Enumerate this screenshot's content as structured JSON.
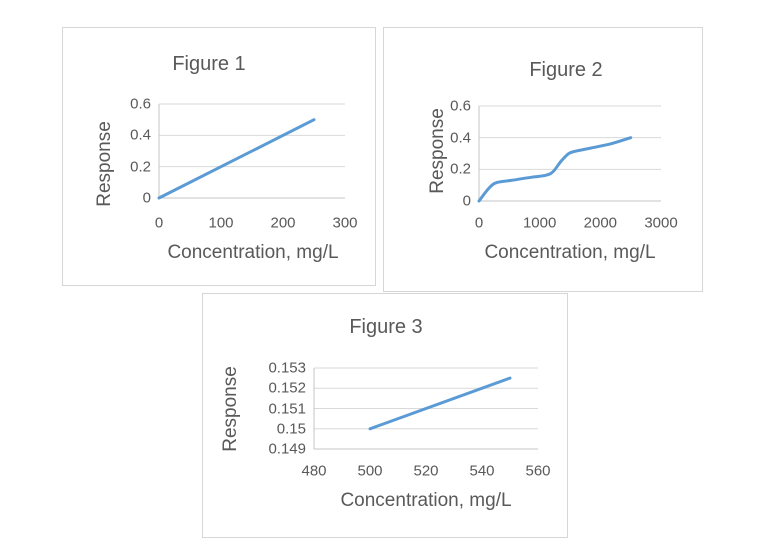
{
  "styles": {
    "line_color": "#5B9BD5",
    "text_color": "#595959",
    "gridline_color": "#D9D9D9",
    "axis_color": "#C6C6C6",
    "panel_border_color": "#D6D6D6",
    "background": "#FFFFFF"
  },
  "chart_data": [
    {
      "type": "line",
      "title": "Figure 1",
      "xlabel": "Concentration, mg/L",
      "ylabel": "Response",
      "x": [
        0,
        250
      ],
      "y": [
        0,
        0.5
      ],
      "xlim": [
        0,
        300
      ],
      "ylim": [
        0,
        0.6
      ],
      "x_ticks": [
        0,
        100,
        200,
        300
      ],
      "x_tick_labels": [
        "0",
        "100",
        "200",
        "300"
      ],
      "y_ticks": [
        0,
        0.2,
        0.4,
        0.6
      ],
      "y_tick_labels": [
        "0",
        "0.2",
        "0.4",
        "0.6"
      ],
      "grid": "horizontal",
      "legend": "none",
      "smooth": false,
      "line_color": "#5B9BD5"
    },
    {
      "type": "line",
      "title": "Figure 2",
      "xlabel": "Concentration, mg/L",
      "ylabel": "Response",
      "x": [
        0,
        150,
        280,
        530,
        860,
        1100,
        1220,
        1350,
        1480,
        1600,
        1850,
        2180,
        2500
      ],
      "y": [
        0,
        0.075,
        0.115,
        0.13,
        0.15,
        0.162,
        0.185,
        0.25,
        0.3,
        0.315,
        0.335,
        0.362,
        0.4
      ],
      "xlim": [
        0,
        3000
      ],
      "ylim": [
        0,
        0.6
      ],
      "x_ticks": [
        0,
        1000,
        2000,
        3000
      ],
      "x_tick_labels": [
        "0",
        "1000",
        "2000",
        "3000"
      ],
      "y_ticks": [
        0,
        0.2,
        0.4,
        0.6
      ],
      "y_tick_labels": [
        "0",
        "0.2",
        "0.4",
        "0.6"
      ],
      "grid": "horizontal",
      "legend": "none",
      "smooth": true,
      "line_color": "#5B9BD5"
    },
    {
      "type": "line",
      "title": "Figure 3",
      "xlabel": "Concentration, mg/L",
      "ylabel": "Response",
      "x": [
        500,
        550
      ],
      "y": [
        0.15,
        0.1525
      ],
      "xlim": [
        480,
        560
      ],
      "ylim": [
        0.149,
        0.153
      ],
      "x_ticks": [
        480,
        500,
        520,
        540,
        560
      ],
      "x_tick_labels": [
        "480",
        "500",
        "520",
        "540",
        "560"
      ],
      "y_ticks": [
        0.149,
        0.15,
        0.151,
        0.152,
        0.153
      ],
      "y_tick_labels": [
        "0.149",
        "0.15",
        "0.151",
        "0.152",
        "0.153"
      ],
      "grid": "horizontal",
      "legend": "none",
      "smooth": false,
      "line_color": "#5B9BD5"
    }
  ]
}
